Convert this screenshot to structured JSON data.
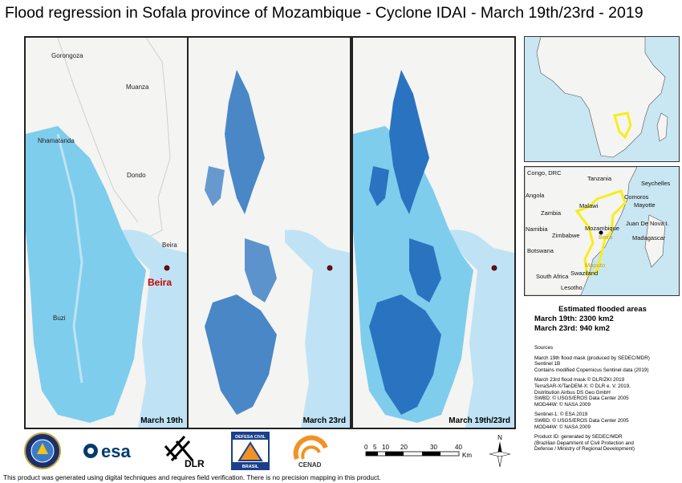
{
  "title": "Flood regression in Sofala province of Mozambique - Cyclone IDAI - March 19th/23rd - 2019",
  "panels": {
    "p1": {
      "label": "March 19th",
      "places": [
        "Gorongoza",
        "Muanza",
        "Nhamatanda",
        "Dondo",
        "Beira",
        "Buzi"
      ],
      "highlight": "Beira"
    },
    "p2": {
      "label": "March 23rd"
    },
    "p3": {
      "label": "March 19th/23rd"
    }
  },
  "inset_map": {
    "labels": [
      "Congo, DRC",
      "Tanzania",
      "Seychelles",
      "Angola",
      "Comoros",
      "Mayotte",
      "Malawi",
      "Zambia",
      "Juan De Nova I.",
      "Namibia",
      "Zimbabwe",
      "Mozambique",
      "Beira",
      "Madagascar",
      "Botswana",
      "Maputo",
      "South Africa",
      "Swaziland",
      "Lesotho"
    ]
  },
  "estimated": {
    "heading": "Estimated flooded areas",
    "line1": "March 19th: 2300  km2",
    "line2": "March 23rd: 940  km2"
  },
  "sources": {
    "heading": "Sources",
    "s1": [
      "March 19th flood mask (produced by SEDEC/MDR)",
      "Sentinel 1B",
      "Contains modified Copernicus Sentinel data (2019)"
    ],
    "s2": [
      "March 23rd flood mask © DLR/ZKI 2019",
      "TerraSAR-X/TanDEM-X: © DLR e. V. 2019,",
      "Distribution Airbus DS Geo GmbH",
      "SWBD: © USGS/EROS Data Center 2005",
      "MOD44W: © NASA 2009"
    ],
    "s3": [
      "Sentinel-1: © ESA 2019",
      "SWBD: © USGS/EROS Data Center 2005",
      "MOD44W: © NASA 2009"
    ],
    "s4": [
      "Product ID: generated by SEDEC/MDR",
      "(Brazilian Department of Civil Protection and",
      "Defense / Ministry of Regional Development)"
    ]
  },
  "logos": {
    "esa": "esa",
    "dlr": "DLR",
    "defesa_top": "DEFESA CIVIL",
    "defesa_bottom": "BRASIL",
    "cenad": "CENAD"
  },
  "scale": {
    "ticks": [
      "0",
      "5",
      "10",
      "20",
      "30",
      "40"
    ],
    "unit": "Km"
  },
  "north": "N",
  "footer": "This product was generated using digital techniques and requires field verification. There is no precision mapping in this product.",
  "colors": {
    "flood_19": "#7fcdec",
    "flood_23": "#2a73c0",
    "water": "#bfe3f4",
    "land": "#f4f4f2",
    "inset_highlight": "#f5ef1a"
  }
}
